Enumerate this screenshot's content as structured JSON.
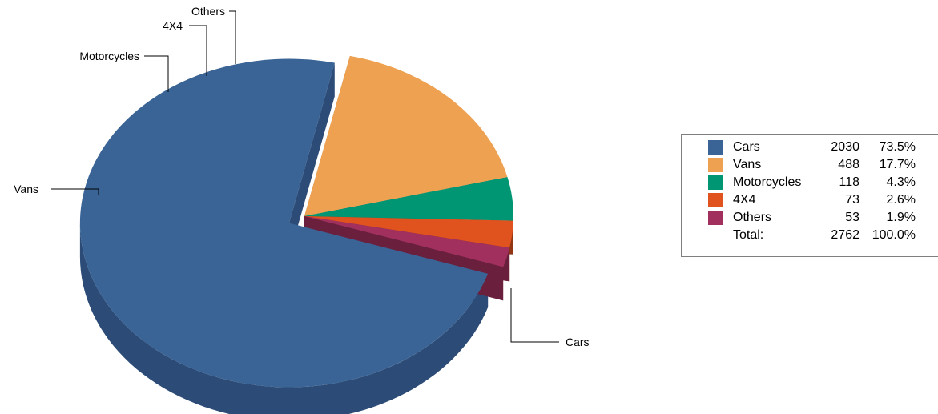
{
  "chart_data": {
    "type": "pie",
    "style": "3d-exploded",
    "slices": [
      {
        "label": "Cars",
        "value": 2030,
        "percent": "73.5%",
        "color": "#3a6496",
        "side_color": "#2c4c77",
        "exploded": true
      },
      {
        "label": "Vans",
        "value": 488,
        "percent": "17.7%",
        "color": "#eea151",
        "side_color": "#9a6636",
        "exploded": false
      },
      {
        "label": "Motorcycles",
        "value": 118,
        "percent": "4.3%",
        "color": "#009573",
        "side_color": "#006249",
        "exploded": false
      },
      {
        "label": "4X4",
        "value": 73,
        "percent": "2.6%",
        "color": "#e0531e",
        "side_color": "#933614",
        "exploded": false
      },
      {
        "label": "Others",
        "value": 53,
        "percent": "1.9%",
        "color": "#a1305e",
        "side_color": "#6a1f3d",
        "exploded": false
      }
    ],
    "total": {
      "label": "Total:",
      "value": 2762,
      "percent": "100.0%"
    },
    "legend_position": "right"
  }
}
